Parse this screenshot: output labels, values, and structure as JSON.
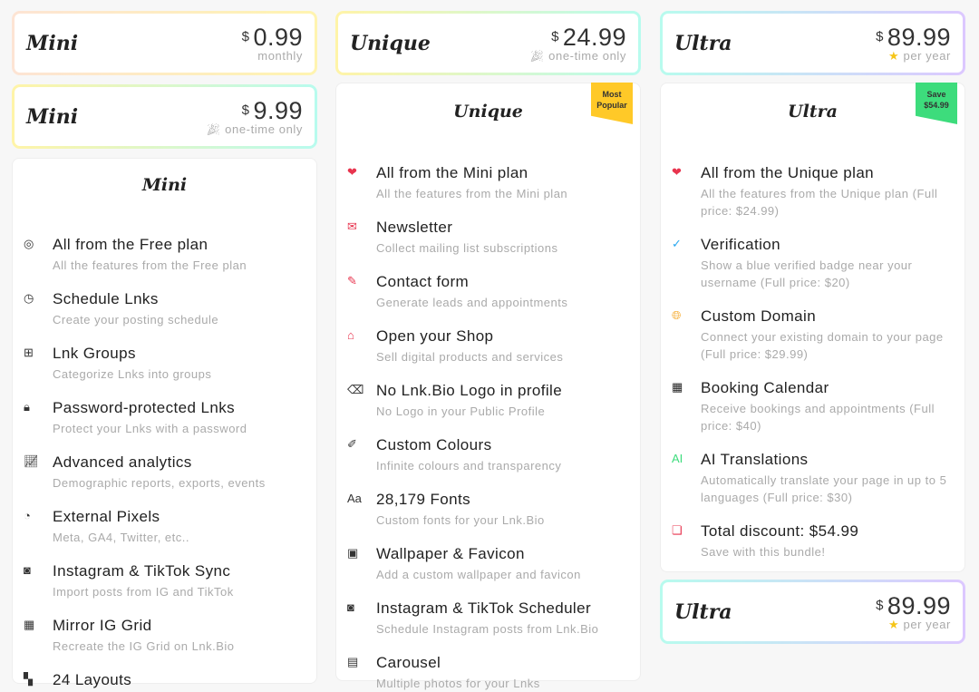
{
  "mini": {
    "cards": [
      {
        "name": "Mini",
        "currency": "$",
        "price": "0.99",
        "period": "monthly",
        "icon": ""
      },
      {
        "name": "Mini",
        "currency": "$",
        "price": "9.99",
        "period": "one-time only",
        "icon": "party-popper-icon"
      }
    ],
    "title": "Mini",
    "items": [
      {
        "icon": "◎",
        "title": "All from the Free plan",
        "sub": "All the features from the Free plan"
      },
      {
        "icon": "◷",
        "title": "Schedule Lnks",
        "sub": "Create your posting schedule"
      },
      {
        "icon": "⊞",
        "title": "Lnk Groups",
        "sub": "Categorize Lnks into groups"
      },
      {
        "icon": "🔒︎",
        "title": "Password-protected Lnks",
        "sub": "Protect your Lnks with a password"
      },
      {
        "icon": "📈︎",
        "title": "Advanced analytics",
        "sub": "Demographic reports, exports, events"
      },
      {
        "icon": "◔",
        "title": "External Pixels",
        "sub": "Meta, GA4, Twitter, etc.."
      },
      {
        "icon": "◙",
        "title": "Instagram & TikTok Sync",
        "sub": "Import posts from IG and TikTok"
      },
      {
        "icon": "▦",
        "title": "Mirror IG Grid",
        "sub": "Recreate the IG Grid on Lnk.Bio"
      },
      {
        "icon": "▚",
        "title": "24 Layouts",
        "sub": ""
      }
    ]
  },
  "unique": {
    "card": {
      "name": "Unique",
      "currency": "$",
      "price": "24.99",
      "period": "one-time only",
      "icon": "party-popper-icon"
    },
    "title": "Unique",
    "ribbon": "Most Popular",
    "ribbon_color": "#ffc928",
    "items": [
      {
        "icon": "❤",
        "title": "All from the Mini plan",
        "sub": "All the features from the Mini plan"
      },
      {
        "icon": "✉",
        "title": "Newsletter",
        "sub": "Collect mailing list subscriptions"
      },
      {
        "icon": "✎",
        "title": "Contact form",
        "sub": "Generate leads and appointments"
      },
      {
        "icon": "⌂",
        "title": "Open your Shop",
        "sub": "Sell digital products and services"
      },
      {
        "icon": "⌫",
        "title": "No Lnk.Bio Logo in profile",
        "sub": "No Logo in your Public Profile"
      },
      {
        "icon": "✐",
        "title": "Custom Colours",
        "sub": "Infinite colours and transparency"
      },
      {
        "icon": "Aa",
        "title": "28,179 Fonts",
        "sub": "Custom fonts for your Lnk.Bio"
      },
      {
        "icon": "▣",
        "title": "Wallpaper & Favicon",
        "sub": "Add a custom wallpaper and favicon"
      },
      {
        "icon": "◙",
        "title": "Instagram & TikTok Scheduler",
        "sub": "Schedule Instagram posts from Lnk.Bio"
      },
      {
        "icon": "▤",
        "title": "Carousel",
        "sub": "Multiple photos for your Lnks"
      }
    ]
  },
  "ultra": {
    "cards": [
      {
        "name": "Ultra",
        "currency": "$",
        "price": "89.99",
        "period": "per year",
        "icon": "star-icon"
      },
      {
        "name": "Ultra",
        "currency": "$",
        "price": "89.99",
        "period": "per year",
        "icon": "star-icon"
      }
    ],
    "title": "Ultra",
    "ribbon": "Save $54.99",
    "ribbon_color": "#3ddc7c",
    "items": [
      {
        "icon": "❤",
        "title": "All from the Unique plan",
        "sub": "All the features from the Unique plan (Full price: $24.99)"
      },
      {
        "icon": "✓",
        "title": "Verification",
        "sub": "Show a blue verified badge near your username (Full price: $20)"
      },
      {
        "icon": "🌐︎",
        "title": "Custom Domain",
        "sub": "Connect your existing domain to your page (Full price: $29.99)"
      },
      {
        "icon": "▦",
        "title": "Booking Calendar",
        "sub": "Receive bookings and appointments (Full price: $40)"
      },
      {
        "icon": "AI",
        "title": "AI Translations",
        "sub": "Automatically translate your page in up to 5 languages (Full price: $30)"
      },
      {
        "icon": "❏",
        "title": "Total discount: $54.99",
        "sub": "Save with this bundle!"
      }
    ]
  },
  "colors": {
    "red_icon": "#e8344e",
    "blue_icon": "#2aa8f0",
    "orange_icon": "#f5a623",
    "green_icon": "#3ddc7c"
  }
}
